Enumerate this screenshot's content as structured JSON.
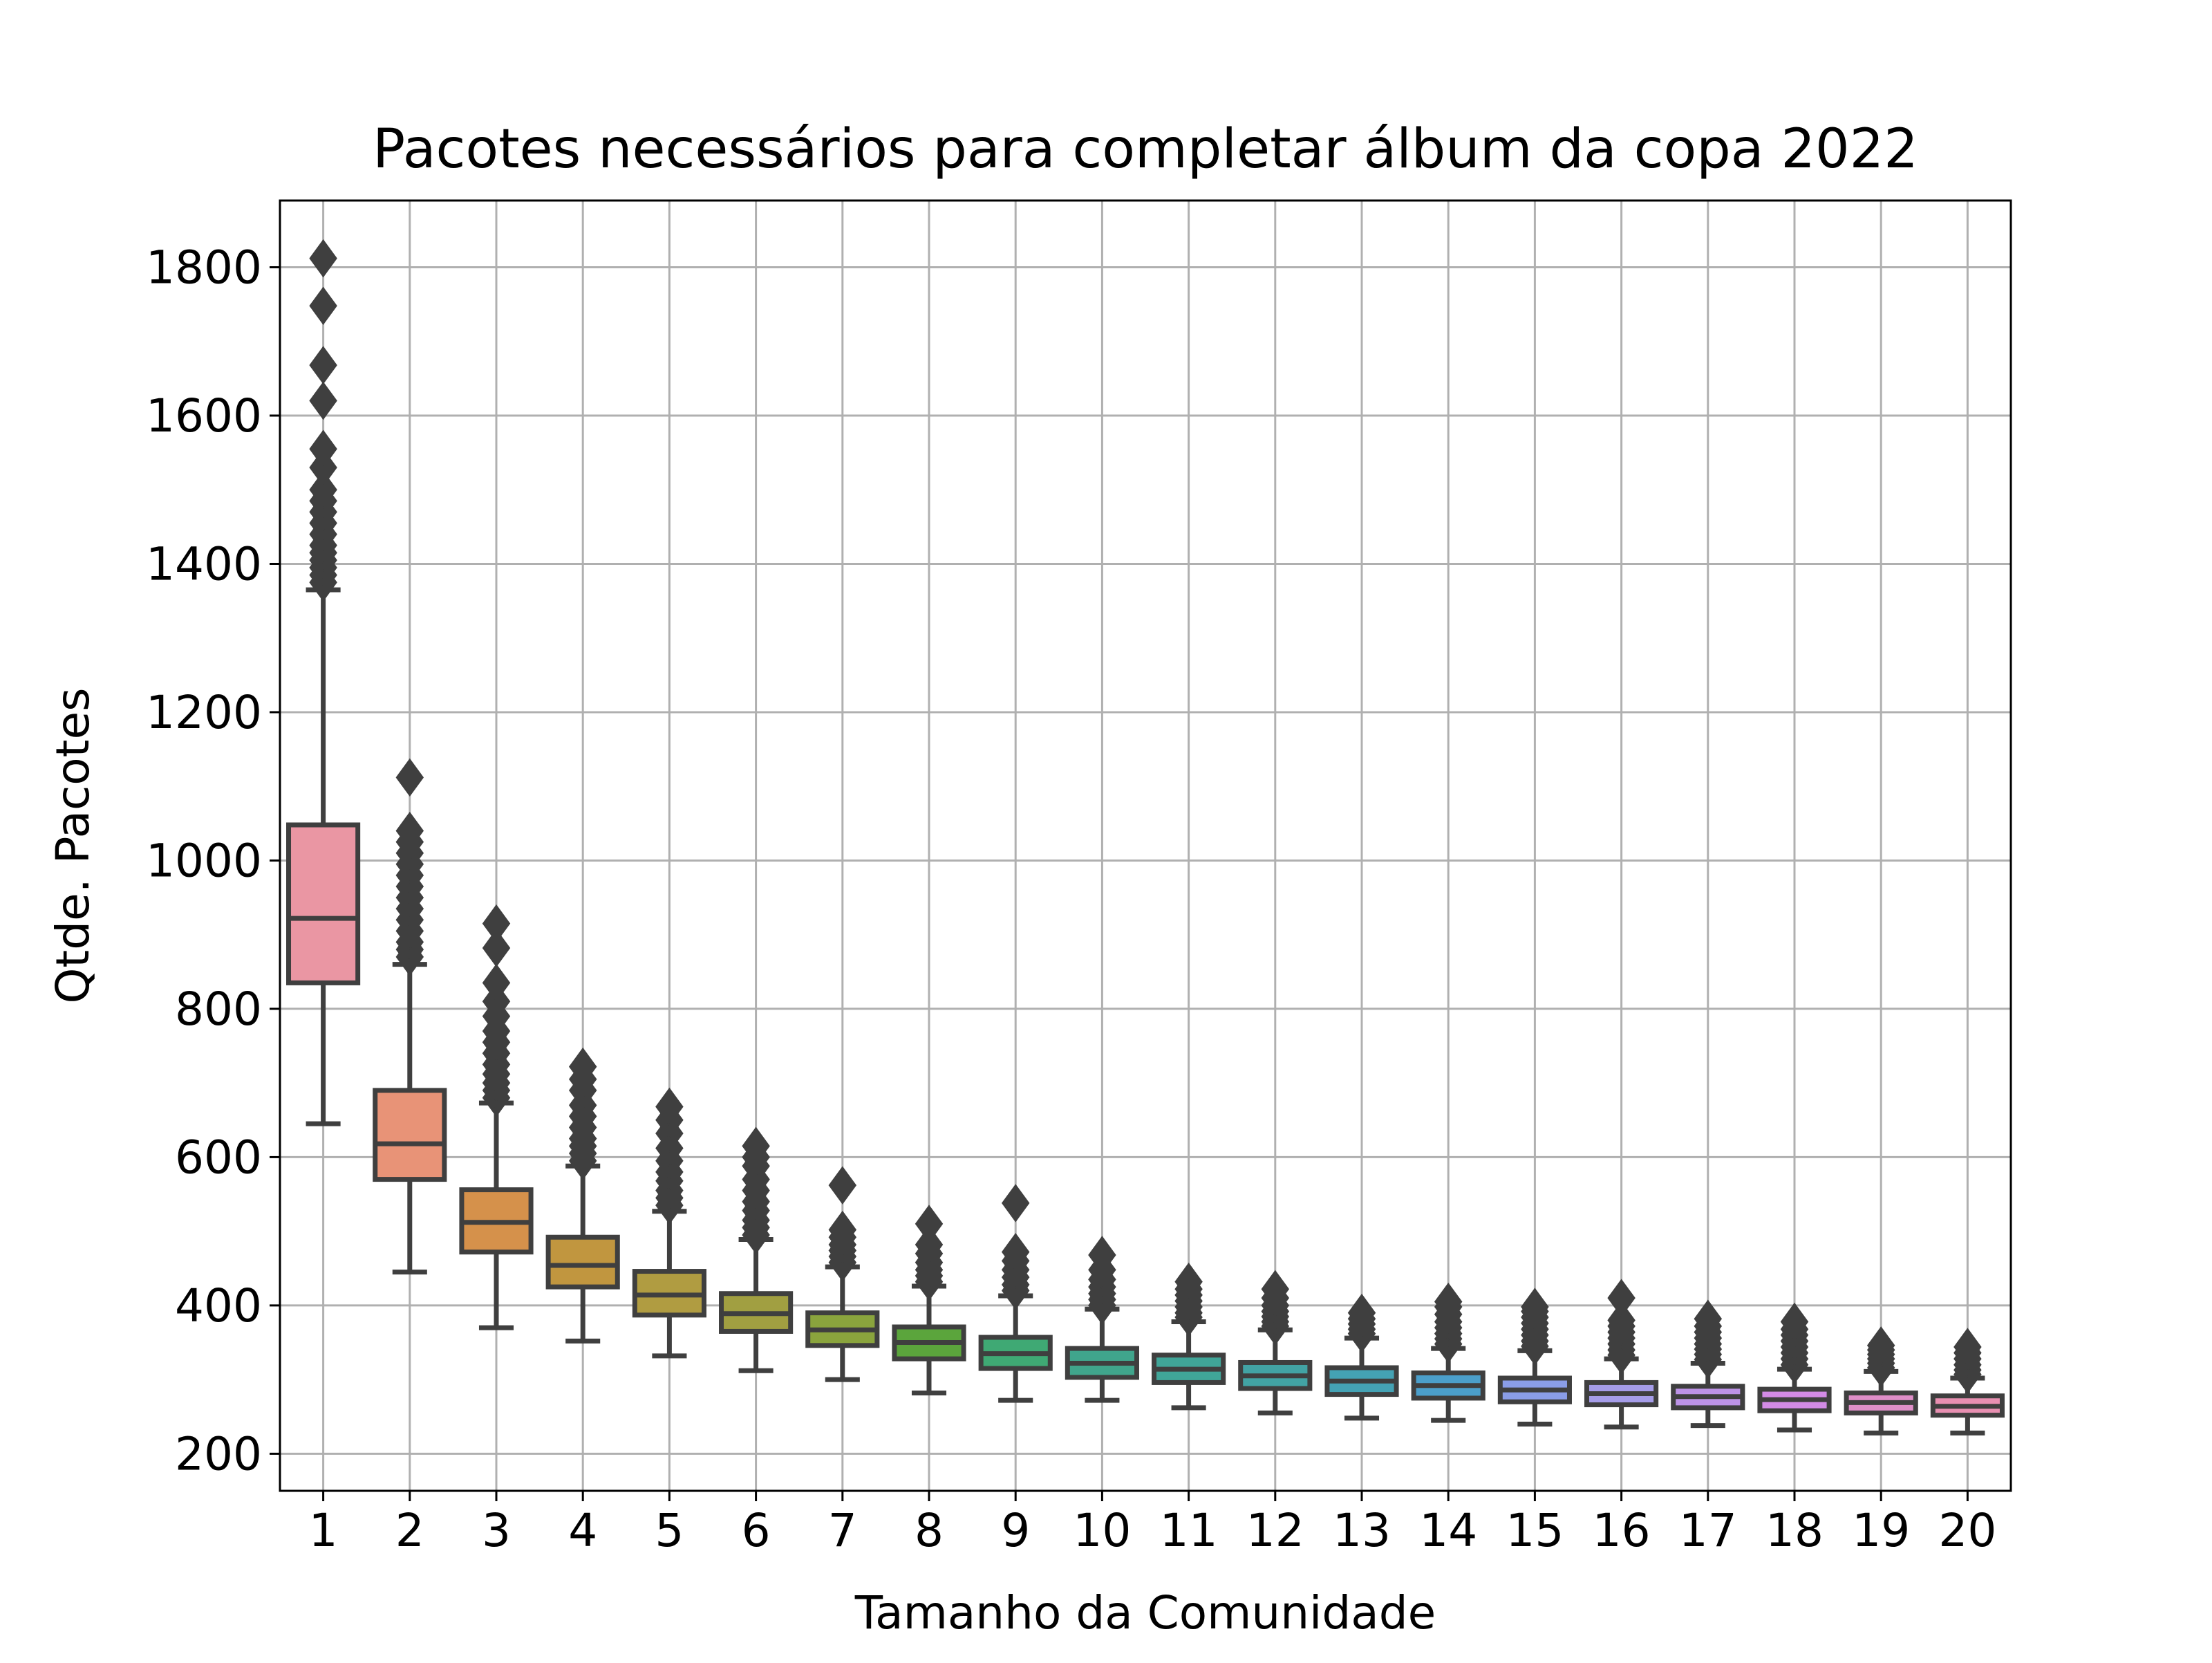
{
  "chart_data": {
    "type": "box",
    "title": "Pacotes necessários para completar álbum da copa 2022",
    "xlabel": "Tamanho da Comunidade",
    "ylabel": "Qtde. Pacotes",
    "categories": [
      "1",
      "2",
      "3",
      "4",
      "5",
      "6",
      "7",
      "8",
      "9",
      "10",
      "11",
      "12",
      "13",
      "14",
      "15",
      "16",
      "17",
      "18",
      "19",
      "20"
    ],
    "ylim": [
      150,
      1890
    ],
    "yticks": [
      200,
      400,
      600,
      800,
      1000,
      1200,
      1400,
      1600,
      1800
    ],
    "grid": true,
    "colors": [
      "#ea96a3",
      "#e89377",
      "#d5914b",
      "#c1963f",
      "#b09c41",
      "#a19f41",
      "#8aa43d",
      "#5ba53c",
      "#3fa974",
      "#40a58c",
      "#40a598",
      "#42a3a4",
      "#44a2b4",
      "#4b9fcb",
      "#8a9de7",
      "#a59ce8",
      "#bd93e7",
      "#d38be6",
      "#df8ec8",
      "#e88fb1"
    ],
    "boxes": [
      {
        "q1": 835,
        "median": 922,
        "q3": 1048,
        "whislo": 645,
        "whishi": 1365,
        "fliers": [
          1375,
          1385,
          1395,
          1405,
          1415,
          1425,
          1440,
          1455,
          1470,
          1485,
          1500,
          1530,
          1555,
          1620,
          1668,
          1748,
          1812
        ]
      },
      {
        "q1": 570,
        "median": 618,
        "q3": 690,
        "whislo": 445,
        "whishi": 860,
        "fliers": [
          870,
          880,
          890,
          905,
          920,
          935,
          950,
          965,
          980,
          995,
          1010,
          1025,
          1040,
          1112
        ]
      },
      {
        "q1": 472,
        "median": 512,
        "q3": 556,
        "whislo": 370,
        "whishi": 673,
        "fliers": [
          680,
          690,
          700,
          712,
          725,
          740,
          755,
          770,
          790,
          810,
          835,
          882,
          915
        ]
      },
      {
        "q1": 425,
        "median": 454,
        "q3": 492,
        "whislo": 352,
        "whishi": 588,
        "fliers": [
          595,
          605,
          615,
          625,
          640,
          655,
          670,
          690,
          705,
          722
        ]
      },
      {
        "q1": 387,
        "median": 414,
        "q3": 446,
        "whislo": 332,
        "whishi": 527,
        "fliers": [
          535,
          545,
          555,
          568,
          580,
          595,
          612,
          632,
          650,
          668
        ]
      },
      {
        "q1": 365,
        "median": 389,
        "q3": 416,
        "whislo": 312,
        "whishi": 489,
        "fliers": [
          495,
          505,
          515,
          528,
          540,
          555,
          570,
          588,
          600,
          615
        ]
      },
      {
        "q1": 346,
        "median": 367,
        "q3": 390,
        "whislo": 300,
        "whishi": 452,
        "fliers": [
          458,
          466,
          474,
          482,
          492,
          502,
          562
        ]
      },
      {
        "q1": 328,
        "median": 350,
        "q3": 371,
        "whislo": 282,
        "whishi": 426,
        "fliers": [
          432,
          440,
          448,
          458,
          470,
          482,
          510
        ]
      },
      {
        "q1": 315,
        "median": 335,
        "q3": 357,
        "whislo": 272,
        "whishi": 413,
        "fliers": [
          420,
          428,
          438,
          448,
          460,
          472,
          538
        ]
      },
      {
        "q1": 303,
        "median": 322,
        "q3": 342,
        "whislo": 272,
        "whishi": 395,
        "fliers": [
          400,
          408,
          416,
          425,
          435,
          448,
          468
        ]
      },
      {
        "q1": 296,
        "median": 314,
        "q3": 333,
        "whislo": 262,
        "whishi": 378,
        "fliers": [
          384,
          390,
          398,
          406,
          414,
          422,
          432
        ]
      },
      {
        "q1": 288,
        "median": 305,
        "q3": 323,
        "whislo": 255,
        "whishi": 367,
        "fliers": [
          372,
          378,
          385,
          392,
          400,
          410,
          422
        ]
      },
      {
        "q1": 280,
        "median": 298,
        "q3": 316,
        "whislo": 248,
        "whishi": 356,
        "fliers": [
          362,
          368,
          375,
          382,
          390
        ]
      },
      {
        "q1": 275,
        "median": 292,
        "q3": 309,
        "whislo": 245,
        "whishi": 342,
        "fliers": [
          348,
          355,
          362,
          370,
          378,
          388,
          398,
          405
        ]
      },
      {
        "q1": 270,
        "median": 286,
        "q3": 302,
        "whislo": 240,
        "whishi": 339,
        "fliers": [
          345,
          352,
          360,
          368,
          376,
          384,
          392,
          398
        ]
      },
      {
        "q1": 266,
        "median": 281,
        "q3": 296,
        "whislo": 236,
        "whishi": 328,
        "fliers": [
          333,
          340,
          348,
          356,
          364,
          372,
          380,
          410
        ]
      },
      {
        "q1": 262,
        "median": 277,
        "q3": 291,
        "whislo": 238,
        "whishi": 322,
        "fliers": [
          327,
          334,
          341,
          348,
          356,
          364,
          372,
          382
        ]
      },
      {
        "q1": 258,
        "median": 273,
        "q3": 287,
        "whislo": 232,
        "whishi": 314,
        "fliers": [
          320,
          328,
          336,
          344,
          352,
          360,
          368,
          378
        ]
      },
      {
        "q1": 255,
        "median": 269,
        "q3": 282,
        "whislo": 228,
        "whishi": 311,
        "fliers": [
          316,
          322,
          328,
          334,
          340,
          346
        ]
      },
      {
        "q1": 252,
        "median": 264,
        "q3": 278,
        "whislo": 228,
        "whishi": 302,
        "fliers": [
          307,
          313,
          320,
          328,
          336,
          344
        ]
      }
    ]
  }
}
